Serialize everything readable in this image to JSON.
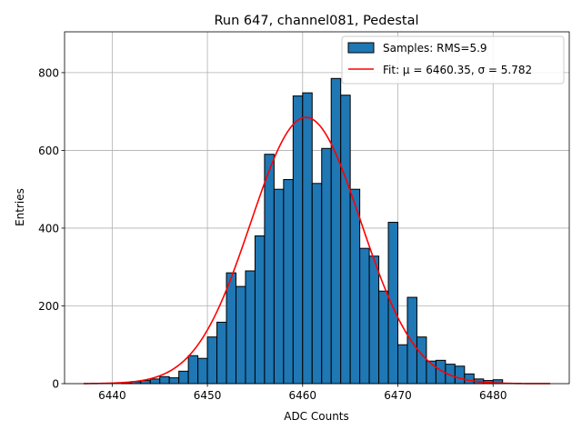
{
  "chart_data": {
    "type": "bar",
    "title": "Run 647, channel081, Pedestal",
    "xlabel": "ADC Counts",
    "ylabel": "Entries",
    "xlim": [
      6435,
      6488
    ],
    "ylim": [
      0,
      905
    ],
    "xticks": [
      6440,
      6450,
      6460,
      6470,
      6480
    ],
    "yticks": [
      0,
      200,
      400,
      600,
      800
    ],
    "grid": true,
    "legend_position": "top-right",
    "bin_width": 1,
    "histogram": {
      "name": "Samples: RMS=5.9",
      "color": "#1f77b4",
      "bin_left_edges": [
        6441,
        6442,
        6443,
        6444,
        6445,
        6446,
        6447,
        6448,
        6449,
        6450,
        6451,
        6452,
        6453,
        6454,
        6455,
        6456,
        6457,
        6458,
        6459,
        6460,
        6461,
        6462,
        6463,
        6464,
        6465,
        6466,
        6467,
        6468,
        6469,
        6470,
        6471,
        6472,
        6473,
        6474,
        6475,
        6476,
        6477,
        6478,
        6479,
        6480
      ],
      "counts": [
        3,
        5,
        8,
        12,
        18,
        15,
        32,
        72,
        65,
        120,
        158,
        285,
        250,
        290,
        380,
        590,
        500,
        525,
        740,
        748,
        515,
        605,
        785,
        742,
        500,
        348,
        328,
        238,
        415,
        100,
        222,
        120,
        58,
        60,
        50,
        45,
        25,
        12,
        8,
        10
      ]
    },
    "fit": {
      "name": "Fit: μ = 6460.35, σ = 5.782",
      "color": "#ff0000",
      "mu": 6460.35,
      "sigma": 5.782,
      "amplitude": 685,
      "x_range": [
        6437,
        6486
      ]
    }
  }
}
